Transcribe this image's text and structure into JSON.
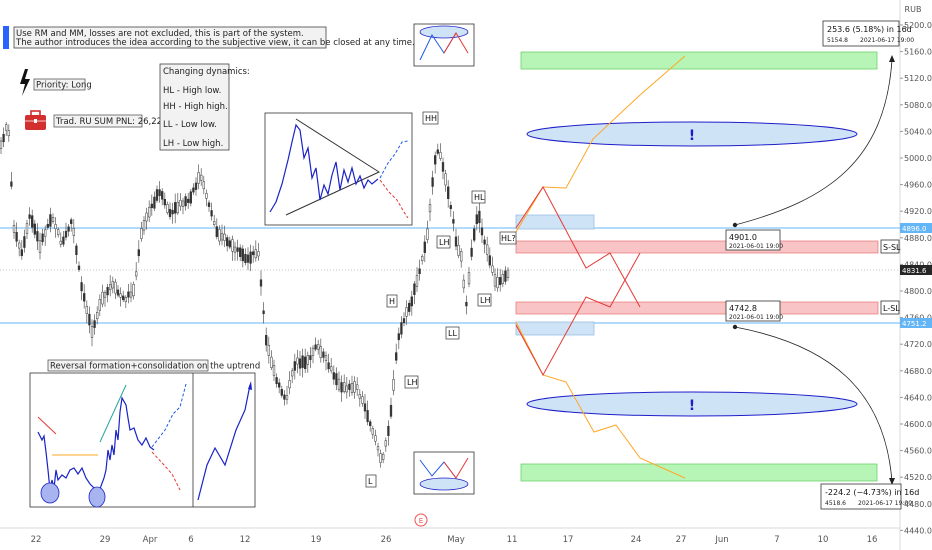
{
  "header": {
    "currency": "RUB",
    "notes_line1": "Use RM and MM, losses are not excluded, this is part of the system.",
    "notes_line2": "The author introduces the idea according to the subjective view, it can be closed at any time."
  },
  "panels": {
    "priority": "Priority: Long",
    "pnl": "Trad. RU SUM PNL: 26,22.",
    "dynamics_title": "Changing dynamics:",
    "dynamics_items": [
      "HL - High low.",
      "HH - High high.",
      "LL - Low low.",
      "LH - Low high."
    ],
    "reversal_caption": "Reversal formation+consolidation on the uptrend"
  },
  "pattern_labels": {
    "hh": "HH",
    "hl": "HL",
    "lh": "LH",
    "hl_q": "HL?",
    "h": "H",
    "lh2": "LH",
    "ll": "LL",
    "lh3": "LH",
    "l": "L"
  },
  "measures": {
    "up_line1": "253.6 (5.18%) in 16d",
    "up_line2": "5154.8",
    "up_date": "2021-06-17  19:00",
    "down_line1": "-224.2 (−4.73%) in 16d",
    "down_line2": "4518.6",
    "down_date": "2021-06-17  19:00",
    "s_price": "4901.0",
    "s_date": "2021-06-01 19:00",
    "l_price": "4742.8",
    "l_date": "2021-06-01 19:00"
  },
  "sl_tags": {
    "short": "S-SL",
    "long": "L-SL"
  },
  "zone_marks": {
    "upper": "!",
    "lower": "!"
  },
  "center_icon": "E",
  "price_axis": {
    "labels": [
      "5200.0",
      "5160.0",
      "5120.0",
      "5080.0",
      "5040.0",
      "5000.0",
      "4960.0",
      "4920.0",
      "4880.0",
      "4840.0",
      "4800.0",
      "4760.0",
      "4720.0",
      "4680.0",
      "4640.0",
      "4600.0",
      "4560.0",
      "4520.0",
      "4480.0",
      "4440.0"
    ],
    "tags": {
      "upper": "4896.0",
      "current": "4831.6",
      "lower": "4751.2"
    }
  },
  "time_axis": [
    "22",
    "29",
    "Apr",
    "6",
    "12",
    "19",
    "26",
    "May",
    "11",
    "17",
    "24",
    "27",
    "Jun",
    "7",
    "10",
    "16"
  ],
  "colors": {
    "up": "#26a69a",
    "down": "#ef5350",
    "candle": "#4a4a4a",
    "hline": "#2196f3",
    "tp": "#90ee90",
    "sl": "#f4a6a8",
    "entry": "#bcd7f0",
    "orange": "#ff9800",
    "red": "#e53935",
    "blue": "#1e1ec8"
  }
}
